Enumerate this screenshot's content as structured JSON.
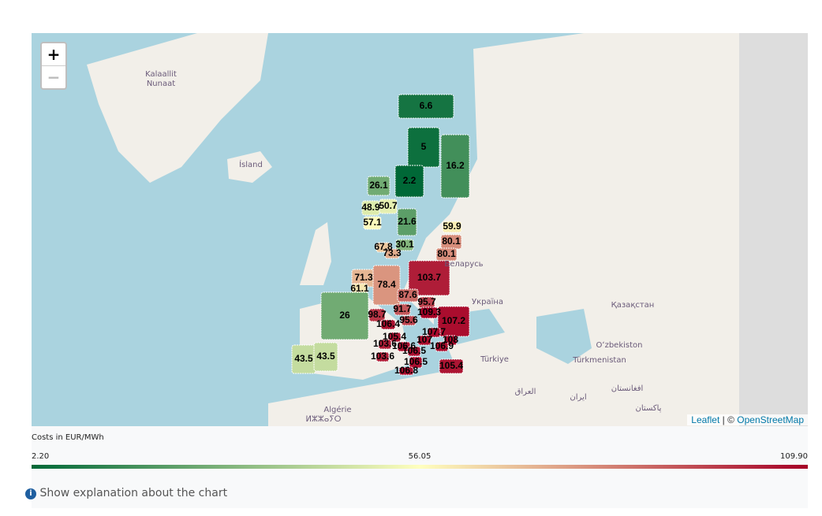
{
  "map_labels": [
    "Kalaallit\nNunaat",
    "Ísland",
    "Беларусь",
    "Україна",
    "Қазақстан",
    "Oʻzbekiston",
    "Türkmenistan",
    "Türkiye",
    "العراق",
    "ایران",
    "افغانستان",
    "پاکستان",
    "Algérie",
    "ⵍⵣⵣⴰⵢⵔ"
  ],
  "zoom_in": "+",
  "zoom_out": "−",
  "attribution": {
    "leaflet": "Leaflet",
    "separator": "| ©",
    "osm": "OpenStreetMap"
  },
  "regions": [
    6.6,
    5,
    16.2,
    2.2,
    26.1,
    48.9,
    50.7,
    57.1,
    21.6,
    59.9,
    80.1,
    80.1,
    30.1,
    67.8,
    73.3,
    103.7,
    71.3,
    78.4,
    61.1,
    87.6,
    95.7,
    91.7,
    109.3,
    98.7,
    26,
    107.2,
    106.4,
    95.6,
    107.7,
    105.4,
    107,
    108,
    103.6,
    106.6,
    106.9,
    106.5,
    43.5,
    43.5,
    103.6,
    106.5,
    105.4,
    106.8
  ],
  "colorbar": {
    "title": "Costs in EUR/MWh",
    "colors": [
      "#006837",
      "#ffffbf",
      "#a50026"
    ],
    "ticks": [
      {
        "value": 2.2,
        "label": "2.20"
      },
      {
        "value": 56.05,
        "label": "56.05"
      },
      {
        "value": 109.9,
        "label": "109.90"
      }
    ]
  },
  "explanation": "Show explanation about the chart"
}
